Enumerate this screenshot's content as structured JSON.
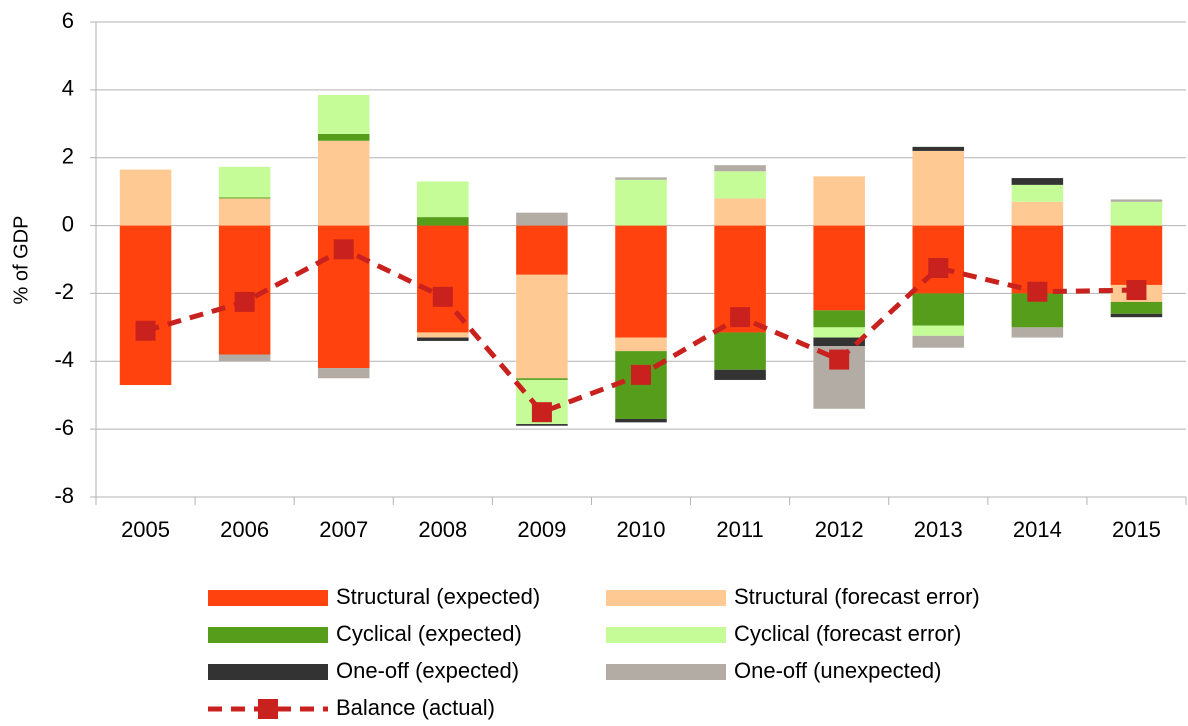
{
  "chart_data": {
    "type": "bar",
    "stacked": true,
    "y_label": "% of GDP",
    "categories": [
      "2005",
      "2006",
      "2007",
      "2008",
      "2009",
      "2010",
      "2011",
      "2012",
      "2013",
      "2014",
      "2015"
    ],
    "ylim": [
      -8,
      6
    ],
    "yticks": [
      -8,
      -6,
      -4,
      -2,
      0,
      2,
      4,
      6
    ],
    "grid": true,
    "legend": "bottom",
    "series": [
      {
        "name": "Structural (expected)",
        "color": "#ff420e",
        "values": [
          -4.7,
          -3.8,
          -4.2,
          -3.15,
          -1.45,
          -3.3,
          -3.15,
          -2.5,
          -2.0,
          -2.0,
          -1.75
        ]
      },
      {
        "name": "Structural (forecast error)",
        "color": "#ffc993",
        "values": [
          1.65,
          0.8,
          2.5,
          -0.15,
          -3.05,
          -0.4,
          0.8,
          1.45,
          2.2,
          0.7,
          -0.5
        ]
      },
      {
        "name": "Cyclical (expected)",
        "color": "#579d1c",
        "values": [
          0,
          0.03,
          0.2,
          0.25,
          -0.05,
          -2.0,
          -1.1,
          -0.5,
          -0.95,
          -1.0,
          -0.35
        ]
      },
      {
        "name": "Cyclical (forecast error)",
        "color": "#c6fc98",
        "values": [
          0,
          0.9,
          1.15,
          1.05,
          -1.3,
          1.35,
          0.8,
          -0.3,
          -0.3,
          0.5,
          0.7
        ]
      },
      {
        "name": "One-off (expected)",
        "color": "#333333",
        "values": [
          0,
          0,
          0,
          -0.1,
          -0.05,
          -0.1,
          -0.3,
          -0.25,
          0.12,
          0.2,
          -0.1
        ]
      },
      {
        "name": "One-off (unexpected)",
        "color": "#b2aca4",
        "values": [
          0,
          -0.2,
          -0.3,
          0,
          0.38,
          0.07,
          0.18,
          -1.85,
          -0.35,
          -0.3,
          0.07
        ]
      },
      {
        "name": "Balance (actual)",
        "color": "#c9211e",
        "type": "line",
        "values": [
          -3.1,
          -2.25,
          -0.7,
          -2.1,
          -5.5,
          -4.4,
          -2.7,
          -3.95,
          -1.25,
          -1.95,
          -1.9
        ]
      }
    ]
  }
}
